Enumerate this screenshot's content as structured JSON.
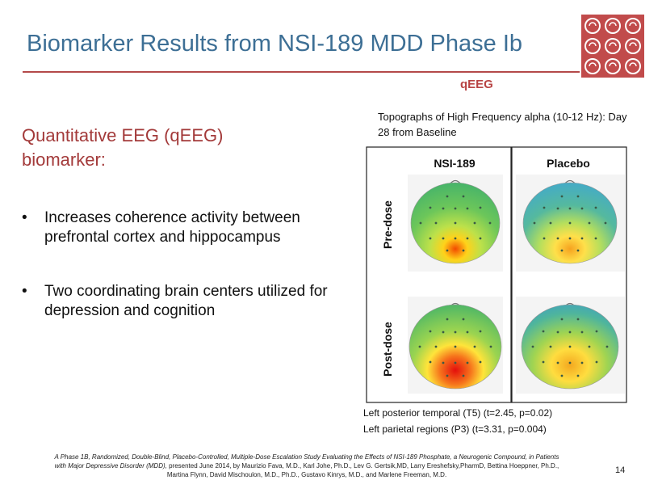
{
  "slide": {
    "title": "Biomarker Results from NSI-189 MDD Phase Ib",
    "section_label": "qEEG",
    "topograph_caption": "Topographs of High Frequency alpha (10-12 Hz):  Day 28 from Baseline",
    "heading": "Quantitative EEG (qEEG) biomarker:",
    "bullets": [
      "Increases coherence activity between prefrontal cortex and hippocampus",
      "Two coordinating brain centers utilized for depression and cognition"
    ],
    "figure": {
      "columns": [
        "NSI-189",
        "Placebo"
      ],
      "rows": [
        "Pre-dose",
        "Post-dose"
      ]
    },
    "stats": [
      "Left posterior temporal (T5)  (t=2.45,  p=0.02)",
      "Left parietal regions (P3)  (t=3.31,  p=0.004)"
    ],
    "reference_italic": "A Phase 1B, Randomized,  Double-Blind,  Placebo-Controlled, Multiple-Dose Escalation Study Evaluating the Effects of NSI-189 Phosphate, a Neurogenic Compound,  in Patients with Major Depressive Disorder (MDD),",
    "reference_plain": " presented June 2014,  by Maurizio Fava, M.D., Karl Johe, Ph.D., Lev G. Gertsik,MD, Larry Ereshefsky,PharmD, Bettina Hoeppner, Ph.D., Martina Flynn, David Mischoulon, M.D., Ph.D., Gustavo Kinrys, M.D., and Marlene Freeman, M.D.",
    "page_number": "14"
  },
  "colors": {
    "title": "#3d6f95",
    "accent_red": "#b44a4a",
    "heading": "#a33a3a"
  }
}
